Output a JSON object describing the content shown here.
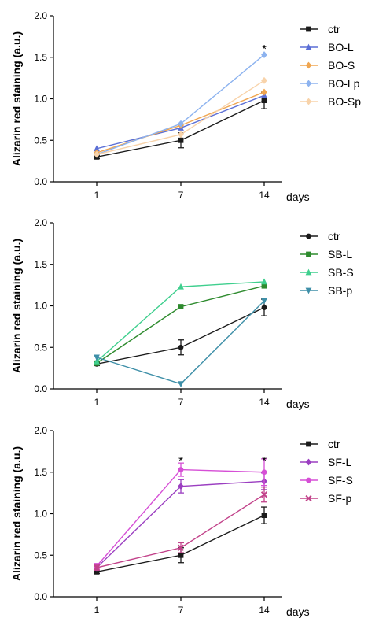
{
  "chart_data": [
    {
      "type": "line",
      "ylabel": "Alizarin red staining (a.u.)",
      "x_unit_label": "days",
      "categories": [
        "1",
        "7",
        "14"
      ],
      "ylim": [
        0,
        2.0
      ],
      "yticks": [
        "0.0",
        "0.5",
        "1.0",
        "1.5",
        "2.0"
      ],
      "legend_position": "right",
      "series": [
        {
          "name": "ctr",
          "color": "#1a1a1a",
          "marker": "square",
          "values": [
            0.3,
            0.5,
            0.98
          ],
          "err": [
            0.02,
            0.09,
            0.1
          ]
        },
        {
          "name": "BO-L",
          "color": "#5b6fd6",
          "marker": "triangle",
          "values": [
            0.4,
            0.65,
            1.04
          ],
          "err": [
            0.0,
            0.0,
            0.0
          ]
        },
        {
          "name": "BO-S",
          "color": "#f0a650",
          "marker": "diamond",
          "values": [
            0.35,
            0.68,
            1.08
          ],
          "err": [
            0.0,
            0.0,
            0.0
          ]
        },
        {
          "name": "BO-Lp",
          "color": "#8db3ef",
          "marker": "diamond",
          "values": [
            0.33,
            0.7,
            1.53
          ],
          "err": [
            0.0,
            0.0,
            0.0
          ]
        },
        {
          "name": "BO-Sp",
          "color": "#f8d3aa",
          "marker": "diamond",
          "values": [
            0.33,
            0.57,
            1.22
          ],
          "err": [
            0.0,
            0.0,
            0.0
          ]
        }
      ],
      "annotations": [
        {
          "text": "*",
          "category": "14",
          "y": 1.6
        }
      ]
    },
    {
      "type": "line",
      "ylabel": "Alizarin red staining (a.u.)",
      "x_unit_label": "days",
      "categories": [
        "1",
        "7",
        "14"
      ],
      "ylim": [
        0,
        2.0
      ],
      "yticks": [
        "0.0",
        "0.5",
        "1.0",
        "1.5",
        "2.0"
      ],
      "legend_position": "right",
      "series": [
        {
          "name": "ctr",
          "color": "#1a1a1a",
          "marker": "circle",
          "values": [
            0.3,
            0.5,
            0.98
          ],
          "err": [
            0.02,
            0.09,
            0.1
          ]
        },
        {
          "name": "SB-L",
          "color": "#2e8b2e",
          "marker": "square",
          "values": [
            0.31,
            0.99,
            1.24
          ],
          "err": [
            0.0,
            0.0,
            0.0
          ]
        },
        {
          "name": "SB-S",
          "color": "#3fcf8e",
          "marker": "triangle",
          "values": [
            0.33,
            1.23,
            1.29
          ],
          "err": [
            0.0,
            0.0,
            0.0
          ]
        },
        {
          "name": "SB-p",
          "color": "#3e8fa8",
          "marker": "triangle-down",
          "values": [
            0.38,
            0.06,
            1.06
          ],
          "err": [
            0.0,
            0.0,
            0.0
          ]
        }
      ],
      "annotations": []
    },
    {
      "type": "line",
      "ylabel": "Alizarin red staining (a.u.)",
      "x_unit_label": "days",
      "categories": [
        "1",
        "7",
        "14"
      ],
      "ylim": [
        0,
        2.0
      ],
      "yticks": [
        "0.0",
        "0.5",
        "1.0",
        "1.5",
        "2.0"
      ],
      "legend_position": "right",
      "series": [
        {
          "name": "ctr",
          "color": "#1a1a1a",
          "marker": "square",
          "values": [
            0.3,
            0.5,
            0.98
          ],
          "err": [
            0.02,
            0.09,
            0.1
          ]
        },
        {
          "name": "SF-L",
          "color": "#9b3fc1",
          "marker": "diamond",
          "values": [
            0.35,
            1.33,
            1.39
          ],
          "err": [
            0.03,
            0.08,
            0.1
          ]
        },
        {
          "name": "SF-S",
          "color": "#d64fd6",
          "marker": "circle",
          "values": [
            0.37,
            1.53,
            1.5
          ],
          "err": [
            0.03,
            0.08,
            0.16
          ]
        },
        {
          "name": "SF-p",
          "color": "#c2428a",
          "marker": "x",
          "values": [
            0.35,
            0.59,
            1.23
          ],
          "err": [
            0.03,
            0.06,
            0.09
          ]
        }
      ],
      "annotations": [
        {
          "text": "*",
          "category": "7",
          "y": 1.64
        },
        {
          "text": "*",
          "category": "14",
          "y": 1.64
        }
      ]
    }
  ]
}
